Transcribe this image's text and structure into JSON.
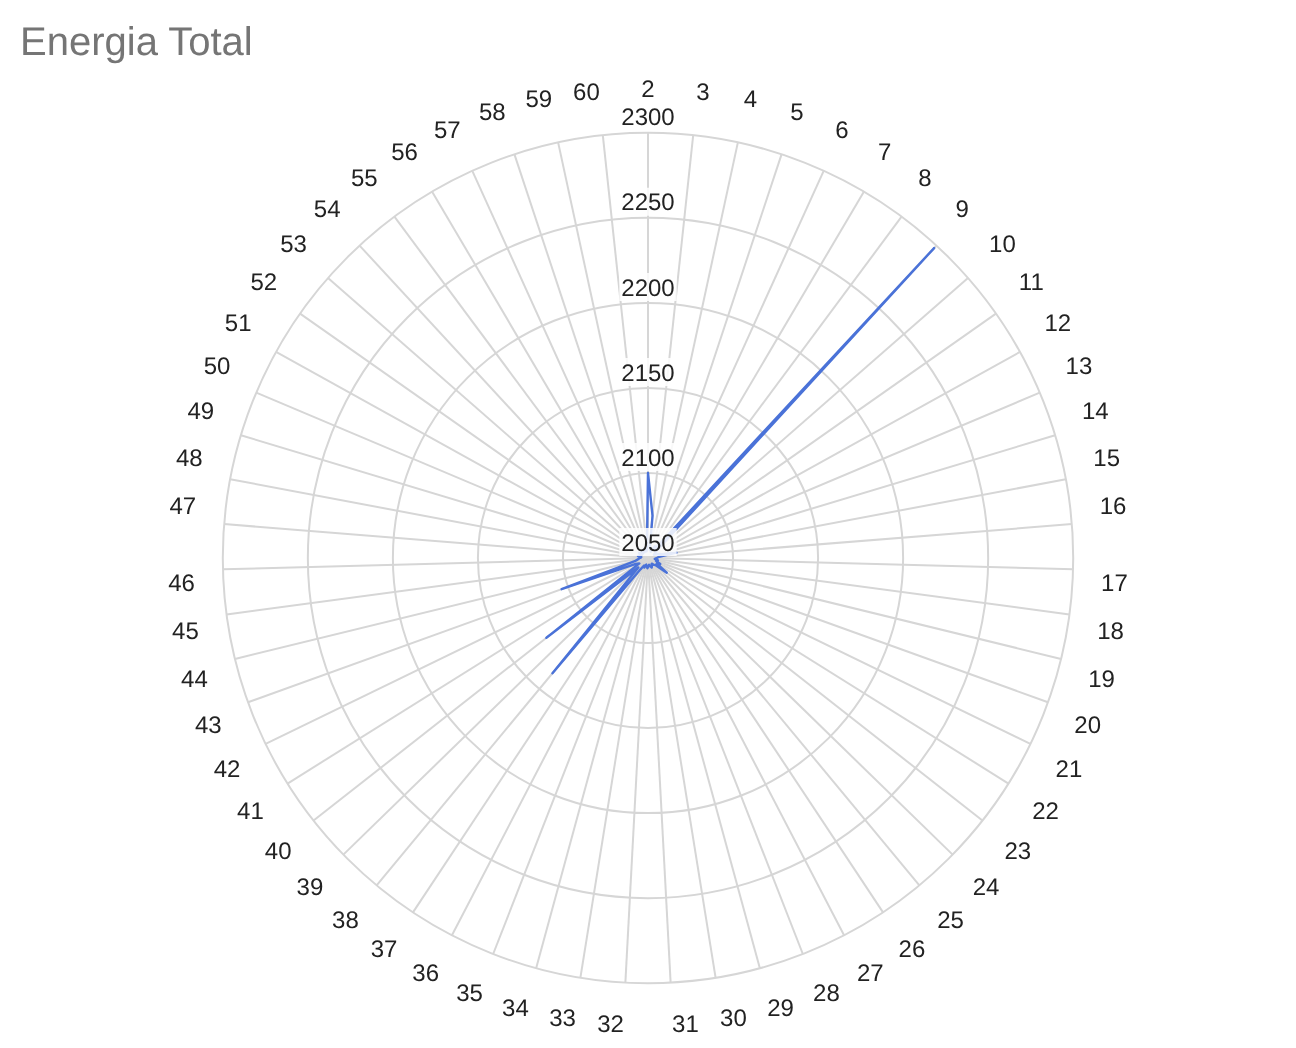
{
  "chart_data": {
    "type": "radar",
    "title": "Energia Total",
    "categories": [
      "2",
      "3",
      "4",
      "5",
      "6",
      "7",
      "8",
      "9",
      "10",
      "11",
      "12",
      "13",
      "14",
      "15",
      "16",
      "17",
      "18",
      "19",
      "20",
      "21",
      "22",
      "23",
      "24",
      "25",
      "26",
      "27",
      "28",
      "29",
      "30",
      "31",
      "32",
      "33",
      "34",
      "35",
      "36",
      "37",
      "38",
      "39",
      "40",
      "41",
      "42",
      "43",
      "44",
      "45",
      "46",
      "47",
      "48",
      "49",
      "50",
      "51",
      "52",
      "53",
      "54",
      "55",
      "56",
      "57",
      "58",
      "59",
      "60"
    ],
    "series": [
      {
        "color": "#4a72d8",
        "values": [
          2100,
          2075,
          2055,
          2056,
          2054,
          2058,
          2056,
          2298,
          2057,
          2055,
          2054,
          2056,
          2058,
          2067,
          2056,
          2055,
          2054,
          2056,
          2055,
          2058,
          2056,
          2064,
          2056,
          2055,
          2054,
          2055,
          2056,
          2055,
          2054,
          2055,
          2056,
          2055,
          2054,
          2056,
          2055,
          2058,
          2138,
          2058,
          2126,
          2056,
          2058,
          2104,
          2058,
          2056,
          2055,
          2054,
          2056,
          2055,
          2054,
          2056,
          2055,
          2054,
          2056,
          2055,
          2054,
          2056,
          2055,
          2054,
          2056
        ]
      }
    ],
    "ylim": [
      2050,
      2300
    ],
    "yticks": [
      2050,
      2100,
      2150,
      2200,
      2250,
      2300
    ],
    "grid": true,
    "marker": "none",
    "legend": false
  }
}
